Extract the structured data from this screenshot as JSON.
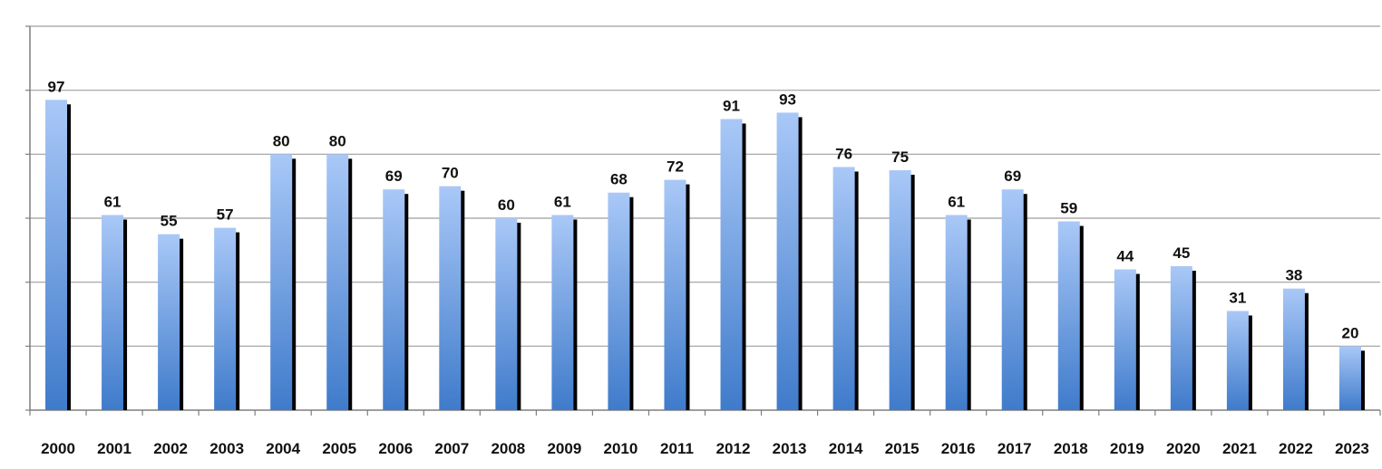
{
  "chart_data": {
    "type": "bar",
    "title": "",
    "xlabel": "",
    "ylabel": "",
    "categories": [
      "2000",
      "2001",
      "2002",
      "2003",
      "2004",
      "2005",
      "2006",
      "2007",
      "2008",
      "2009",
      "2010",
      "2011",
      "2012",
      "2013",
      "2014",
      "2015",
      "2016",
      "2017",
      "2018",
      "2019",
      "2020",
      "2021",
      "2022",
      "2023"
    ],
    "values": [
      97,
      61,
      55,
      57,
      80,
      80,
      69,
      70,
      60,
      61,
      68,
      72,
      91,
      93,
      76,
      75,
      61,
      69,
      59,
      44,
      45,
      31,
      38,
      20
    ],
    "ylim": [
      0,
      120
    ],
    "gridline_step": 20,
    "grid": true,
    "y_tick_labels_shown": false,
    "legend": "none",
    "data_labels": true,
    "colors": {
      "bar_top": "#a9c8f7",
      "bar_bottom": "#3f7bcb",
      "bar_shadow": "#000000",
      "grid": "#9e9e9e",
      "axis": "#7f7f7f"
    }
  }
}
